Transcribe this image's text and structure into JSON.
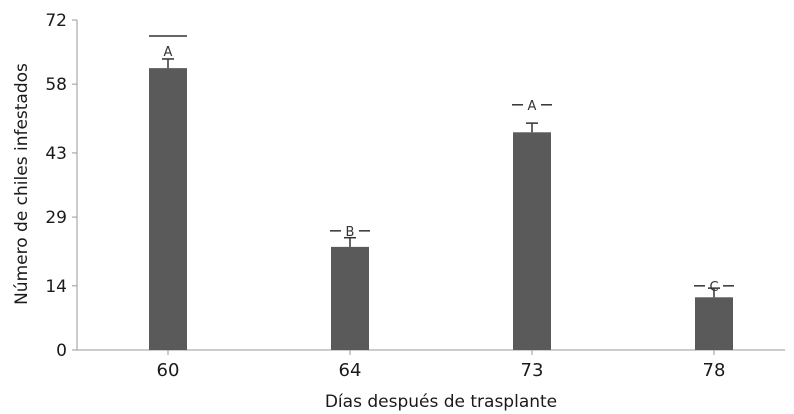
{
  "chart_data": {
    "type": "bar",
    "xlabel": "Días después de trasplante",
    "ylabel": "Número de chiles infestados",
    "categories": [
      "60",
      "64",
      "73",
      "78"
    ],
    "values": [
      61.5,
      22.5,
      47.5,
      11.5
    ],
    "error_upper": [
      63.5,
      24.5,
      49.5,
      13.5
    ],
    "letter_cap": [
      68.5,
      26,
      53.5,
      14
    ],
    "letters": [
      "A",
      "B",
      "A",
      "C"
    ],
    "yticks": [
      0,
      14,
      29,
      43,
      58,
      72
    ],
    "ylim": [
      0,
      72
    ],
    "grid": false,
    "bar_color": "#5a5a5a"
  }
}
